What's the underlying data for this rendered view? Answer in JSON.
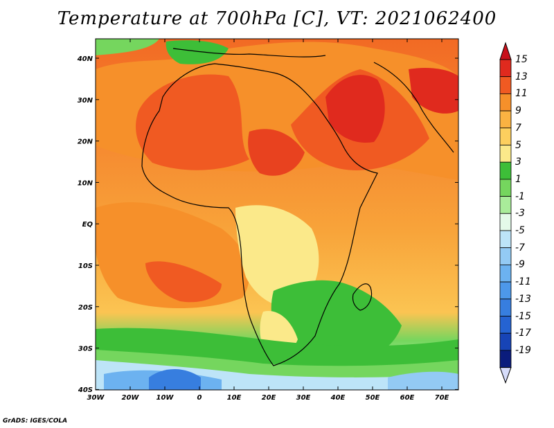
{
  "title": "Temperature at 700hPa [C], VT: 2021062400",
  "credit": "GrADS: IGES/COLA",
  "map": {
    "lat_labels": [
      "40N",
      "30N",
      "20N",
      "10N",
      "EQ",
      "10S",
      "20S",
      "30S",
      "40S"
    ],
    "lon_labels": [
      "30W",
      "20W",
      "10W",
      "0",
      "10E",
      "20E",
      "30E",
      "40E",
      "50E",
      "60E",
      "70E"
    ]
  },
  "colorbar": {
    "labels": [
      "15",
      "13",
      "11",
      "9",
      "7",
      "5",
      "3",
      "1",
      "-1",
      "-3",
      "-5",
      "-7",
      "-9",
      "-11",
      "-13",
      "-15",
      "-17",
      "-19"
    ],
    "colors": [
      "#e02a1e",
      "#f05a22",
      "#f6902a",
      "#fab242",
      "#fdcf5e",
      "#fbe98a",
      "#3dbe38",
      "#75d65e",
      "#a9ec9a",
      "#e4fae9",
      "#bde4f8",
      "#93caf4",
      "#6cb2f0",
      "#4d98ea",
      "#377edf",
      "#2563d2",
      "#1744b6",
      "#0a1c7c"
    ],
    "top_arrow_color": "#c8101a",
    "bottom_arrow_color": "#d6dcfa"
  }
}
